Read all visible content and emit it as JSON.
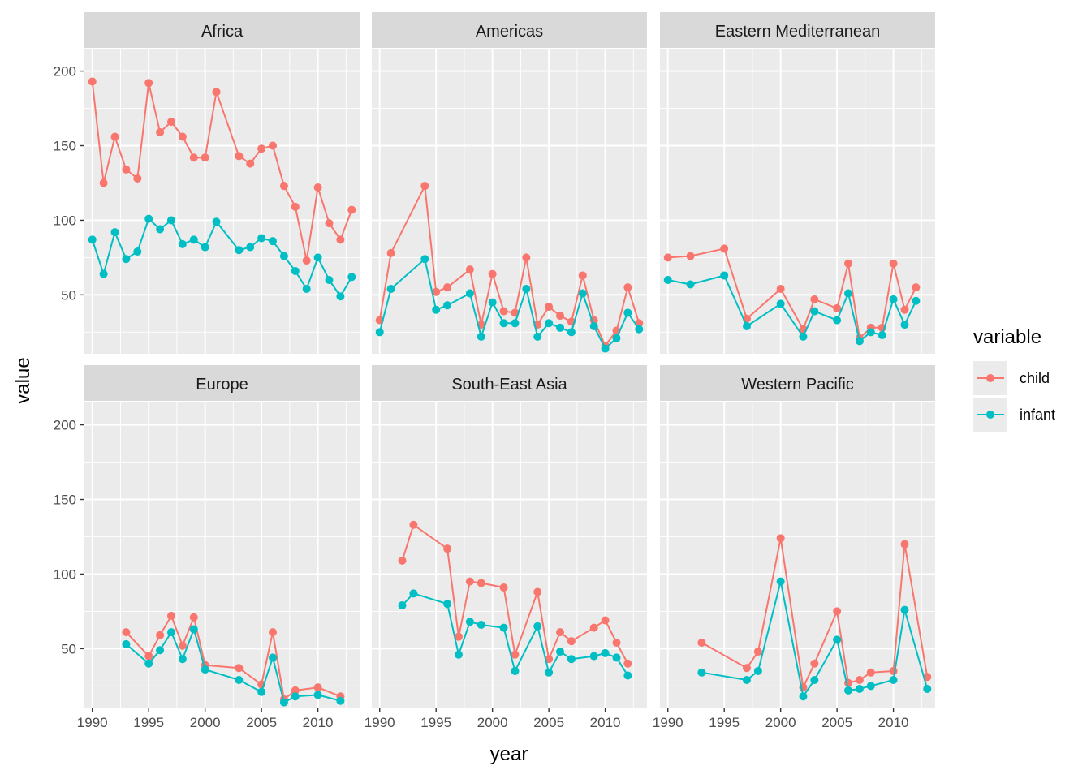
{
  "chart_data": {
    "type": "line",
    "xlabel": "year",
    "ylabel": "value",
    "xlim": [
      1989.3,
      2013.7
    ],
    "ylim": [
      10.5,
      215
    ],
    "x_ticks": [
      1990,
      1995,
      2000,
      2005,
      2010
    ],
    "y_ticks": [
      50,
      100,
      150,
      200
    ],
    "grid": true,
    "legend": {
      "title": "variable",
      "position": "right",
      "entries": [
        {
          "key": "child",
          "label": "child",
          "color": "#F8766D"
        },
        {
          "key": "infant",
          "label": "infant",
          "color": "#00BFC4"
        }
      ]
    },
    "facets": [
      {
        "region": "Africa",
        "series": [
          {
            "key": "child",
            "points": [
              [
                1990,
                193
              ],
              [
                1991,
                125
              ],
              [
                1992,
                156
              ],
              [
                1993,
                134
              ],
              [
                1994,
                128
              ],
              [
                1995,
                192
              ],
              [
                1996,
                159
              ],
              [
                1997,
                166
              ],
              [
                1998,
                156
              ],
              [
                1999,
                142
              ],
              [
                2000,
                142
              ],
              [
                2001,
                186
              ],
              [
                2003,
                143
              ],
              [
                2004,
                138
              ],
              [
                2005,
                148
              ],
              [
                2006,
                150
              ],
              [
                2007,
                123
              ],
              [
                2008,
                109
              ],
              [
                2009,
                73
              ],
              [
                2010,
                122
              ],
              [
                2011,
                98
              ],
              [
                2012,
                87
              ],
              [
                2013,
                107
              ]
            ]
          },
          {
            "key": "infant",
            "points": [
              [
                1990,
                87
              ],
              [
                1991,
                64
              ],
              [
                1992,
                92
              ],
              [
                1993,
                74
              ],
              [
                1994,
                79
              ],
              [
                1995,
                101
              ],
              [
                1996,
                94
              ],
              [
                1997,
                100
              ],
              [
                1998,
                84
              ],
              [
                1999,
                87
              ],
              [
                2000,
                82
              ],
              [
                2001,
                99
              ],
              [
                2003,
                80
              ],
              [
                2004,
                82
              ],
              [
                2005,
                88
              ],
              [
                2006,
                86
              ],
              [
                2007,
                76
              ],
              [
                2008,
                66
              ],
              [
                2009,
                54
              ],
              [
                2010,
                75
              ],
              [
                2011,
                60
              ],
              [
                2012,
                49
              ],
              [
                2013,
                62
              ]
            ]
          }
        ]
      },
      {
        "region": "Americas",
        "series": [
          {
            "key": "child",
            "points": [
              [
                1990,
                33
              ],
              [
                1991,
                78
              ],
              [
                1994,
                123
              ],
              [
                1995,
                52
              ],
              [
                1996,
                55
              ],
              [
                1998,
                67
              ],
              [
                1999,
                30
              ],
              [
                2000,
                64
              ],
              [
                2001,
                39
              ],
              [
                2002,
                38
              ],
              [
                2003,
                75
              ],
              [
                2004,
                30
              ],
              [
                2005,
                42
              ],
              [
                2006,
                36
              ],
              [
                2007,
                32
              ],
              [
                2008,
                63
              ],
              [
                2009,
                33
              ],
              [
                2010,
                16
              ],
              [
                2011,
                26
              ],
              [
                2012,
                55
              ],
              [
                2013,
                31
              ]
            ]
          },
          {
            "key": "infant",
            "points": [
              [
                1990,
                25
              ],
              [
                1991,
                54
              ],
              [
                1994,
                74
              ],
              [
                1995,
                40
              ],
              [
                1996,
                43
              ],
              [
                1998,
                51
              ],
              [
                1999,
                22
              ],
              [
                2000,
                45
              ],
              [
                2001,
                31
              ],
              [
                2002,
                31
              ],
              [
                2003,
                54
              ],
              [
                2004,
                22
              ],
              [
                2005,
                31
              ],
              [
                2006,
                28
              ],
              [
                2007,
                25
              ],
              [
                2008,
                51
              ],
              [
                2009,
                29
              ],
              [
                2010,
                14
              ],
              [
                2011,
                21
              ],
              [
                2012,
                38
              ],
              [
                2013,
                27
              ]
            ]
          }
        ]
      },
      {
        "region": "Eastern Mediterranean",
        "series": [
          {
            "key": "child",
            "points": [
              [
                1990,
                75
              ],
              [
                1992,
                76
              ],
              [
                1995,
                81
              ],
              [
                1997,
                34
              ],
              [
                2000,
                54
              ],
              [
                2002,
                27
              ],
              [
                2003,
                47
              ],
              [
                2005,
                41
              ],
              [
                2006,
                71
              ],
              [
                2007,
                21
              ],
              [
                2008,
                28
              ],
              [
                2009,
                28
              ],
              [
                2010,
                71
              ],
              [
                2011,
                40
              ],
              [
                2012,
                55
              ]
            ]
          },
          {
            "key": "infant",
            "points": [
              [
                1990,
                60
              ],
              [
                1992,
                57
              ],
              [
                1995,
                63
              ],
              [
                1997,
                29
              ],
              [
                2000,
                44
              ],
              [
                2002,
                22
              ],
              [
                2003,
                39
              ],
              [
                2005,
                33
              ],
              [
                2006,
                51
              ],
              [
                2007,
                19
              ],
              [
                2008,
                25
              ],
              [
                2009,
                23
              ],
              [
                2010,
                47
              ],
              [
                2011,
                30
              ],
              [
                2012,
                46
              ]
            ]
          }
        ]
      },
      {
        "region": "Europe",
        "series": [
          {
            "key": "child",
            "points": [
              [
                1993,
                61
              ],
              [
                1995,
                45
              ],
              [
                1996,
                59
              ],
              [
                1997,
                72
              ],
              [
                1998,
                52
              ],
              [
                1999,
                71
              ],
              [
                2000,
                39
              ],
              [
                2003,
                37
              ],
              [
                2005,
                26
              ],
              [
                2006,
                61
              ],
              [
                2007,
                16
              ],
              [
                2008,
                22
              ],
              [
                2010,
                24
              ],
              [
                2012,
                18
              ]
            ]
          },
          {
            "key": "infant",
            "points": [
              [
                1993,
                53
              ],
              [
                1995,
                40
              ],
              [
                1996,
                49
              ],
              [
                1997,
                61
              ],
              [
                1998,
                43
              ],
              [
                1999,
                63
              ],
              [
                2000,
                36
              ],
              [
                2003,
                29
              ],
              [
                2005,
                21
              ],
              [
                2006,
                44
              ],
              [
                2007,
                14
              ],
              [
                2008,
                18
              ],
              [
                2010,
                19
              ],
              [
                2012,
                15
              ]
            ]
          }
        ]
      },
      {
        "region": "South-East Asia",
        "series": [
          {
            "key": "child",
            "points": [
              [
                1992,
                109
              ],
              [
                1993,
                133
              ],
              [
                1996,
                117
              ],
              [
                1997,
                58
              ],
              [
                1998,
                95
              ],
              [
                1999,
                94
              ],
              [
                2001,
                91
              ],
              [
                2002,
                46
              ],
              [
                2004,
                88
              ],
              [
                2005,
                43
              ],
              [
                2006,
                61
              ],
              [
                2007,
                55
              ],
              [
                2009,
                64
              ],
              [
                2010,
                69
              ],
              [
                2011,
                54
              ],
              [
                2012,
                40
              ]
            ]
          },
          {
            "key": "infant",
            "points": [
              [
                1992,
                79
              ],
              [
                1993,
                87
              ],
              [
                1996,
                80
              ],
              [
                1997,
                46
              ],
              [
                1998,
                68
              ],
              [
                1999,
                66
              ],
              [
                2001,
                64
              ],
              [
                2002,
                35
              ],
              [
                2004,
                65
              ],
              [
                2005,
                34
              ],
              [
                2006,
                48
              ],
              [
                2007,
                43
              ],
              [
                2009,
                45
              ],
              [
                2010,
                47
              ],
              [
                2011,
                44
              ],
              [
                2012,
                32
              ]
            ]
          }
        ]
      },
      {
        "region": "Western Pacific",
        "series": [
          {
            "key": "child",
            "points": [
              [
                1993,
                54
              ],
              [
                1997,
                37
              ],
              [
                1998,
                48
              ],
              [
                2000,
                124
              ],
              [
                2002,
                24
              ],
              [
                2003,
                40
              ],
              [
                2005,
                75
              ],
              [
                2006,
                27
              ],
              [
                2007,
                29
              ],
              [
                2008,
                34
              ],
              [
                2010,
                35
              ],
              [
                2011,
                120
              ],
              [
                2013,
                31
              ]
            ]
          },
          {
            "key": "infant",
            "points": [
              [
                1993,
                34
              ],
              [
                1997,
                29
              ],
              [
                1998,
                35
              ],
              [
                2000,
                95
              ],
              [
                2002,
                18
              ],
              [
                2003,
                29
              ],
              [
                2005,
                56
              ],
              [
                2006,
                22
              ],
              [
                2007,
                23
              ],
              [
                2008,
                25
              ],
              [
                2010,
                29
              ],
              [
                2011,
                76
              ],
              [
                2013,
                23
              ]
            ]
          }
        ]
      }
    ]
  }
}
